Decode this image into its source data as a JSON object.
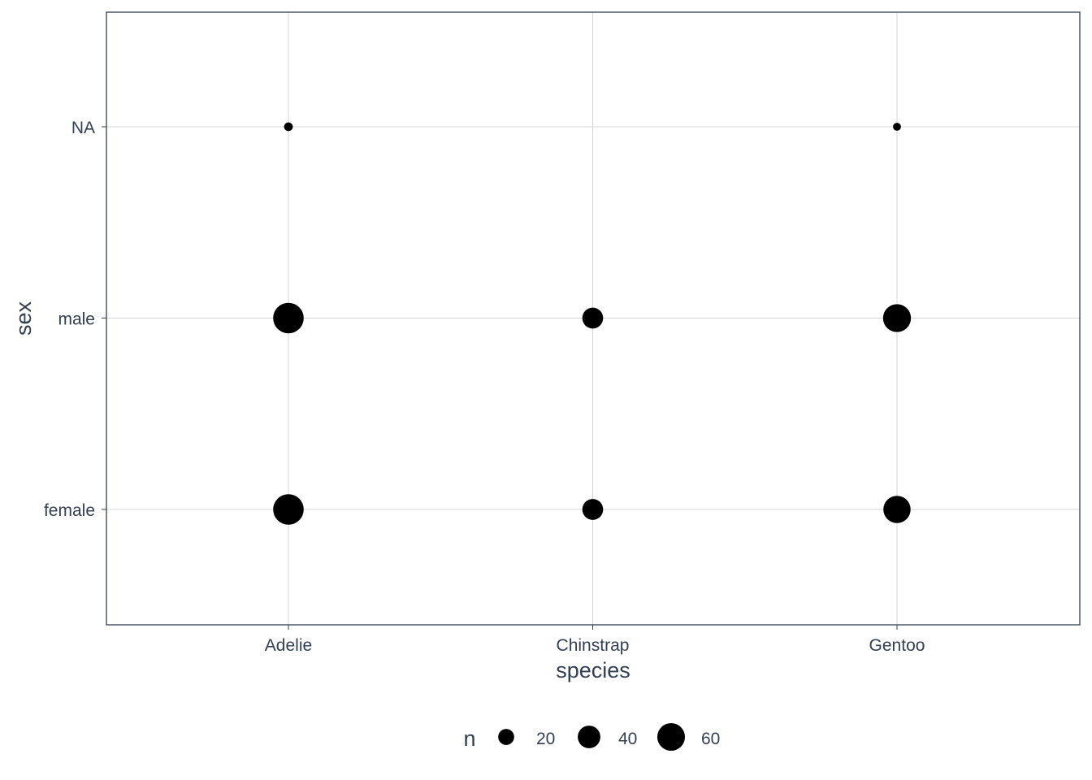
{
  "chart_data": {
    "type": "scatter",
    "xlabel": "species",
    "ylabel": "sex",
    "x_categories": [
      "Adelie",
      "Chinstrap",
      "Gentoo"
    ],
    "y_categories": [
      "female",
      "male",
      "NA"
    ],
    "points": [
      {
        "x": "Adelie",
        "y": "female",
        "n": 73
      },
      {
        "x": "Adelie",
        "y": "male",
        "n": 73
      },
      {
        "x": "Adelie",
        "y": "NA",
        "n": 6
      },
      {
        "x": "Chinstrap",
        "y": "female",
        "n": 34
      },
      {
        "x": "Chinstrap",
        "y": "male",
        "n": 34
      },
      {
        "x": "Gentoo",
        "y": "female",
        "n": 58
      },
      {
        "x": "Gentoo",
        "y": "male",
        "n": 61
      },
      {
        "x": "Gentoo",
        "y": "NA",
        "n": 5
      }
    ],
    "size_legend": {
      "title": "n",
      "breaks": [
        20,
        40,
        60
      ],
      "labels": [
        "20",
        "40",
        "60"
      ]
    },
    "grid": true,
    "legend_position": "bottom",
    "point_color": "#000000",
    "grid_color": "#d4d4d4",
    "panel_border_color": "#333f52"
  }
}
